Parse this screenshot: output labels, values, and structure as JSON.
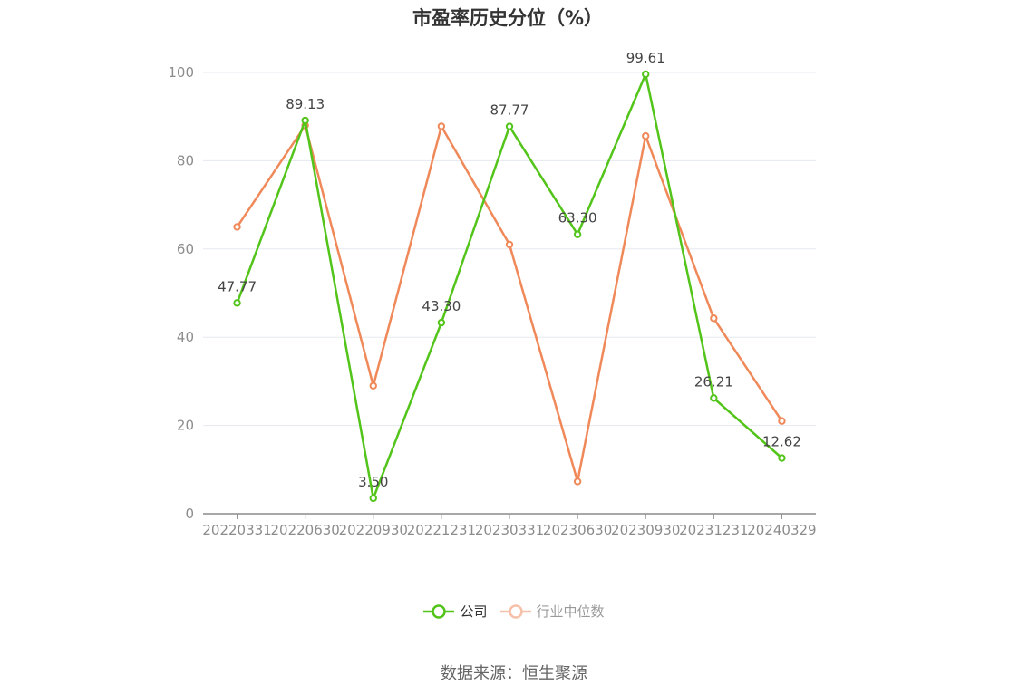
{
  "chart_data": {
    "type": "line",
    "title": "市盈率历史分位（%）",
    "categories": [
      "20220331",
      "20220630",
      "20220930",
      "20221231",
      "20230331",
      "20230630",
      "20230930",
      "20231231",
      "20240329"
    ],
    "ylim": [
      0,
      100
    ],
    "yticks": [
      0,
      20,
      40,
      60,
      80,
      100
    ],
    "grid": true,
    "legend_position": "bottom",
    "series": [
      {
        "name": "公司",
        "color": "#52c41a",
        "values": [
          47.77,
          89.13,
          3.5,
          43.3,
          87.77,
          63.3,
          99.61,
          26.21,
          12.62
        ],
        "labels": [
          "47.77",
          "89.13",
          "3.50",
          "43.30",
          "87.77",
          "63.30",
          "99.61",
          "26.21",
          "12.62"
        ]
      },
      {
        "name": "行业中位数",
        "color": "#f0895a",
        "values": [
          65.0,
          88.0,
          29.0,
          87.8,
          61.0,
          7.3,
          85.6,
          44.3,
          21.0
        ]
      }
    ]
  },
  "legend": {
    "company": "公司",
    "industry": "行业中位数"
  },
  "source": "数据来源：恒生聚源"
}
